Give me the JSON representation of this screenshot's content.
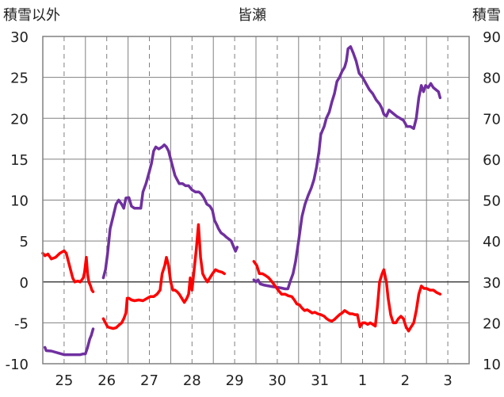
{
  "chart_data": {
    "type": "line",
    "title": "皆瀬",
    "ylabel_left": "積雪以外",
    "ylabel_right": "積雪",
    "ylim_left": [
      -10,
      30
    ],
    "ylim_right": [
      10,
      90
    ],
    "yticks_left": [
      30,
      25,
      20,
      15,
      10,
      5,
      0,
      -5,
      -10
    ],
    "yticks_right": [
      90,
      80,
      70,
      60,
      50,
      40,
      30,
      20,
      10
    ],
    "day_labels": [
      "25",
      "26",
      "27",
      "28",
      "29",
      "30",
      "31",
      "1",
      "2",
      "3"
    ],
    "x_range_days": [
      0,
      10
    ],
    "grid": true,
    "series": [
      {
        "axis": "right",
        "color": "#7030a0",
        "segments": [
          [
            [
              0.05,
              14.0
            ],
            [
              0.08,
              13.2
            ],
            [
              0.2,
              13.1
            ],
            [
              0.3,
              12.8
            ],
            [
              0.4,
              12.5
            ],
            [
              0.5,
              12.2
            ],
            [
              0.6,
              12.2
            ],
            [
              0.7,
              12.2
            ],
            [
              0.8,
              12.2
            ],
            [
              0.88,
              12.2
            ],
            [
              0.95,
              12.4
            ],
            [
              1.0,
              12.4
            ],
            [
              1.05,
              14.0
            ],
            [
              1.1,
              16.0
            ],
            [
              1.14,
              17.0
            ],
            [
              1.18,
              18.5
            ]
          ],
          [
            [
              1.42,
              31.0
            ],
            [
              1.47,
              33.0
            ],
            [
              1.52,
              37.0
            ],
            [
              1.58,
              43.0
            ],
            [
              1.65,
              46.0
            ],
            [
              1.72,
              49.0
            ],
            [
              1.78,
              50.0
            ],
            [
              1.85,
              49.0
            ],
            [
              1.9,
              48.0
            ],
            [
              1.95,
              50.5
            ],
            [
              2.02,
              50.6
            ],
            [
              2.08,
              48.5
            ],
            [
              2.15,
              48.0
            ],
            [
              2.22,
              48.0
            ],
            [
              2.3,
              48.0
            ],
            [
              2.35,
              52.0
            ],
            [
              2.42,
              54.0
            ],
            [
              2.5,
              57.0
            ],
            [
              2.55,
              59.0
            ],
            [
              2.6,
              62.0
            ],
            [
              2.65,
              63.0
            ],
            [
              2.72,
              62.5
            ],
            [
              2.8,
              63.0
            ],
            [
              2.85,
              63.5
            ],
            [
              2.9,
              63.0
            ],
            [
              2.95,
              62.0
            ],
            [
              3.0,
              60.0
            ],
            [
              3.05,
              58.0
            ],
            [
              3.1,
              56.0
            ],
            [
              3.15,
              55.0
            ],
            [
              3.2,
              54.0
            ],
            [
              3.28,
              54.0
            ],
            [
              3.35,
              53.5
            ],
            [
              3.42,
              53.5
            ],
            [
              3.5,
              52.5
            ],
            [
              3.58,
              52.0
            ],
            [
              3.66,
              52.0
            ],
            [
              3.72,
              51.5
            ],
            [
              3.78,
              50.5
            ],
            [
              3.85,
              49.0
            ],
            [
              3.92,
              48.5
            ],
            [
              3.98,
              47.5
            ],
            [
              4.03,
              45.0
            ],
            [
              4.08,
              44.0
            ],
            [
              4.12,
              43.0
            ],
            [
              4.18,
              42.0
            ],
            [
              4.25,
              41.5
            ],
            [
              4.3,
              41.0
            ],
            [
              4.36,
              40.5
            ],
            [
              4.42,
              40.0
            ],
            [
              4.48,
              38.5
            ],
            [
              4.52,
              37.5
            ],
            [
              4.56,
              38.5
            ]
          ]
        ]
      },
      {
        "axis": "right",
        "color": "#7030a0",
        "segments": [
          [
            [
              4.95,
              30.5
            ],
            [
              5.0,
              30.0
            ],
            [
              5.05,
              30.5
            ],
            [
              5.1,
              29.5
            ],
            [
              5.2,
              29.2
            ],
            [
              5.3,
              29.0
            ],
            [
              5.4,
              28.8
            ],
            [
              5.5,
              28.7
            ],
            [
              5.6,
              28.5
            ],
            [
              5.68,
              28.3
            ],
            [
              5.75,
              28.3
            ],
            [
              5.8,
              30.0
            ],
            [
              5.87,
              32.0
            ],
            [
              5.93,
              35.0
            ],
            [
              6.0,
              40.0
            ],
            [
              6.08,
              46.0
            ],
            [
              6.15,
              49.0
            ],
            [
              6.22,
              51.0
            ],
            [
              6.3,
              53.0
            ],
            [
              6.36,
              55.0
            ],
            [
              6.42,
              58.0
            ],
            [
              6.48,
              62.0
            ],
            [
              6.52,
              66.0
            ],
            [
              6.56,
              67.0
            ],
            [
              6.6,
              68.0
            ],
            [
              6.65,
              70.0
            ],
            [
              6.72,
              71.5
            ],
            [
              6.78,
              74.0
            ],
            [
              6.84,
              76.0
            ],
            [
              6.9,
              79.0
            ],
            [
              6.96,
              80.0
            ],
            [
              7.02,
              81.5
            ],
            [
              7.08,
              82.5
            ],
            [
              7.12,
              84.0
            ],
            [
              7.16,
              87.0
            ],
            [
              7.22,
              87.5
            ],
            [
              7.28,
              86.0
            ],
            [
              7.35,
              84.0
            ],
            [
              7.42,
              81.0
            ],
            [
              7.5,
              80.0
            ],
            [
              7.58,
              78.5
            ],
            [
              7.66,
              77.0
            ],
            [
              7.74,
              76.0
            ],
            [
              7.82,
              74.5
            ],
            [
              7.9,
              73.5
            ],
            [
              7.95,
              72.5
            ],
            [
              8.0,
              71.0
            ],
            [
              8.06,
              70.5
            ],
            [
              8.12,
              72.0
            ],
            [
              8.18,
              71.5
            ],
            [
              8.24,
              71.0
            ],
            [
              8.3,
              70.5
            ],
            [
              8.38,
              70.0
            ],
            [
              8.46,
              69.5
            ],
            [
              8.54,
              68.0
            ],
            [
              8.62,
              68.0
            ],
            [
              8.7,
              67.5
            ],
            [
              8.76,
              70.0
            ],
            [
              8.82,
              75.0
            ],
            [
              8.88,
              78.0
            ],
            [
              8.93,
              76.5
            ],
            [
              8.98,
              78.0
            ],
            [
              9.04,
              77.5
            ],
            [
              9.1,
              78.5
            ],
            [
              9.16,
              77.5
            ],
            [
              9.22,
              77.0
            ],
            [
              9.28,
              76.5
            ],
            [
              9.32,
              75.0
            ]
          ]
        ]
      },
      {
        "axis": "left",
        "color": "#ff0000",
        "segments": [
          [
            [
              0.0,
              3.5
            ],
            [
              0.05,
              3.2
            ],
            [
              0.12,
              3.4
            ],
            [
              0.2,
              2.8
            ],
            [
              0.3,
              3.0
            ],
            [
              0.4,
              3.5
            ],
            [
              0.5,
              3.8
            ],
            [
              0.55,
              3.5
            ],
            [
              0.6,
              2.5
            ],
            [
              0.65,
              1.5
            ],
            [
              0.7,
              0.5
            ],
            [
              0.75,
              0.0
            ],
            [
              0.82,
              0.1
            ],
            [
              0.88,
              0.0
            ],
            [
              0.95,
              0.5
            ],
            [
              0.98,
              1.2
            ],
            [
              1.02,
              3.0
            ],
            [
              1.05,
              1.0
            ],
            [
              1.08,
              0.0
            ],
            [
              1.12,
              -0.5
            ],
            [
              1.15,
              -1.0
            ],
            [
              1.18,
              -1.2
            ]
          ],
          [
            [
              1.42,
              -4.5
            ],
            [
              1.47,
              -5.0
            ],
            [
              1.52,
              -5.5
            ],
            [
              1.58,
              -5.6
            ],
            [
              1.65,
              -5.7
            ],
            [
              1.72,
              -5.6
            ],
            [
              1.78,
              -5.3
            ],
            [
              1.85,
              -5.0
            ],
            [
              1.9,
              -4.5
            ],
            [
              1.95,
              -3.8
            ],
            [
              1.98,
              -2.0
            ],
            [
              2.02,
              -2.0
            ],
            [
              2.08,
              -2.2
            ],
            [
              2.15,
              -2.3
            ],
            [
              2.25,
              -2.2
            ],
            [
              2.35,
              -2.3
            ],
            [
              2.45,
              -2.0
            ],
            [
              2.52,
              -1.8
            ],
            [
              2.6,
              -1.8
            ],
            [
              2.68,
              -1.5
            ],
            [
              2.75,
              -1.0
            ],
            [
              2.8,
              1.0
            ],
            [
              2.86,
              2.0
            ],
            [
              2.9,
              3.0
            ],
            [
              2.95,
              2.0
            ],
            [
              3.0,
              0.0
            ],
            [
              3.05,
              -1.0
            ],
            [
              3.1,
              -1.0
            ],
            [
              3.15,
              -1.2
            ],
            [
              3.2,
              -1.5
            ],
            [
              3.26,
              -2.0
            ],
            [
              3.32,
              -2.5
            ],
            [
              3.38,
              -2.0
            ],
            [
              3.42,
              -1.5
            ],
            [
              3.46,
              0.5
            ],
            [
              3.5,
              -1.0
            ],
            [
              3.55,
              1.5
            ],
            [
              3.6,
              4.0
            ],
            [
              3.65,
              7.0
            ],
            [
              3.7,
              3.0
            ],
            [
              3.75,
              1.0
            ],
            [
              3.8,
              0.5
            ],
            [
              3.86,
              0.0
            ],
            [
              3.92,
              0.5
            ],
            [
              3.98,
              1.0
            ],
            [
              4.05,
              1.5
            ],
            [
              4.12,
              1.3
            ],
            [
              4.2,
              1.2
            ],
            [
              4.26,
              1.0
            ]
          ],
          [
            [
              4.95,
              2.5
            ],
            [
              5.02,
              2.0
            ],
            [
              5.08,
              1.0
            ],
            [
              5.15,
              1.0
            ],
            [
              5.22,
              0.8
            ],
            [
              5.3,
              0.5
            ],
            [
              5.38,
              0.0
            ],
            [
              5.45,
              -0.5
            ],
            [
              5.52,
              -1.0
            ],
            [
              5.6,
              -1.5
            ],
            [
              5.68,
              -1.5
            ],
            [
              5.76,
              -1.7
            ],
            [
              5.84,
              -1.8
            ],
            [
              5.9,
              -2.2
            ],
            [
              5.96,
              -2.7
            ],
            [
              6.02,
              -2.8
            ],
            [
              6.08,
              -3.2
            ],
            [
              6.14,
              -3.5
            ],
            [
              6.2,
              -3.4
            ],
            [
              6.26,
              -3.6
            ],
            [
              6.32,
              -3.8
            ],
            [
              6.38,
              -3.7
            ],
            [
              6.45,
              -3.9
            ],
            [
              6.52,
              -4.0
            ],
            [
              6.6,
              -4.2
            ],
            [
              6.66,
              -4.5
            ],
            [
              6.72,
              -4.7
            ],
            [
              6.78,
              -4.8
            ],
            [
              6.84,
              -4.6
            ],
            [
              6.9,
              -4.3
            ],
            [
              6.96,
              -4.0
            ],
            [
              7.02,
              -3.8
            ],
            [
              7.08,
              -3.5
            ],
            [
              7.14,
              -3.7
            ],
            [
              7.2,
              -3.9
            ],
            [
              7.26,
              -3.9
            ],
            [
              7.32,
              -4.0
            ],
            [
              7.38,
              -4.0
            ],
            [
              7.44,
              -5.5
            ],
            [
              7.5,
              -5.0
            ],
            [
              7.56,
              -5.0
            ],
            [
              7.62,
              -5.2
            ],
            [
              7.68,
              -5.0
            ],
            [
              7.74,
              -5.2
            ],
            [
              7.8,
              -5.4
            ],
            [
              7.85,
              -3.0
            ],
            [
              7.9,
              0.0
            ],
            [
              7.96,
              1.0
            ],
            [
              8.0,
              1.5
            ],
            [
              8.06,
              0.0
            ],
            [
              8.1,
              -2.0
            ],
            [
              8.16,
              -4.0
            ],
            [
              8.22,
              -5.0
            ],
            [
              8.28,
              -5.0
            ],
            [
              8.34,
              -4.5
            ],
            [
              8.4,
              -4.2
            ],
            [
              8.46,
              -4.5
            ],
            [
              8.52,
              -5.5
            ],
            [
              8.58,
              -6.0
            ],
            [
              8.64,
              -5.5
            ],
            [
              8.7,
              -5.0
            ],
            [
              8.76,
              -3.5
            ],
            [
              8.82,
              -1.5
            ],
            [
              8.88,
              -0.5
            ],
            [
              8.94,
              -0.8
            ],
            [
              9.0,
              -0.8
            ],
            [
              9.08,
              -1.0
            ],
            [
              9.16,
              -1.0
            ],
            [
              9.24,
              -1.3
            ],
            [
              9.32,
              -1.5
            ]
          ]
        ]
      }
    ]
  }
}
